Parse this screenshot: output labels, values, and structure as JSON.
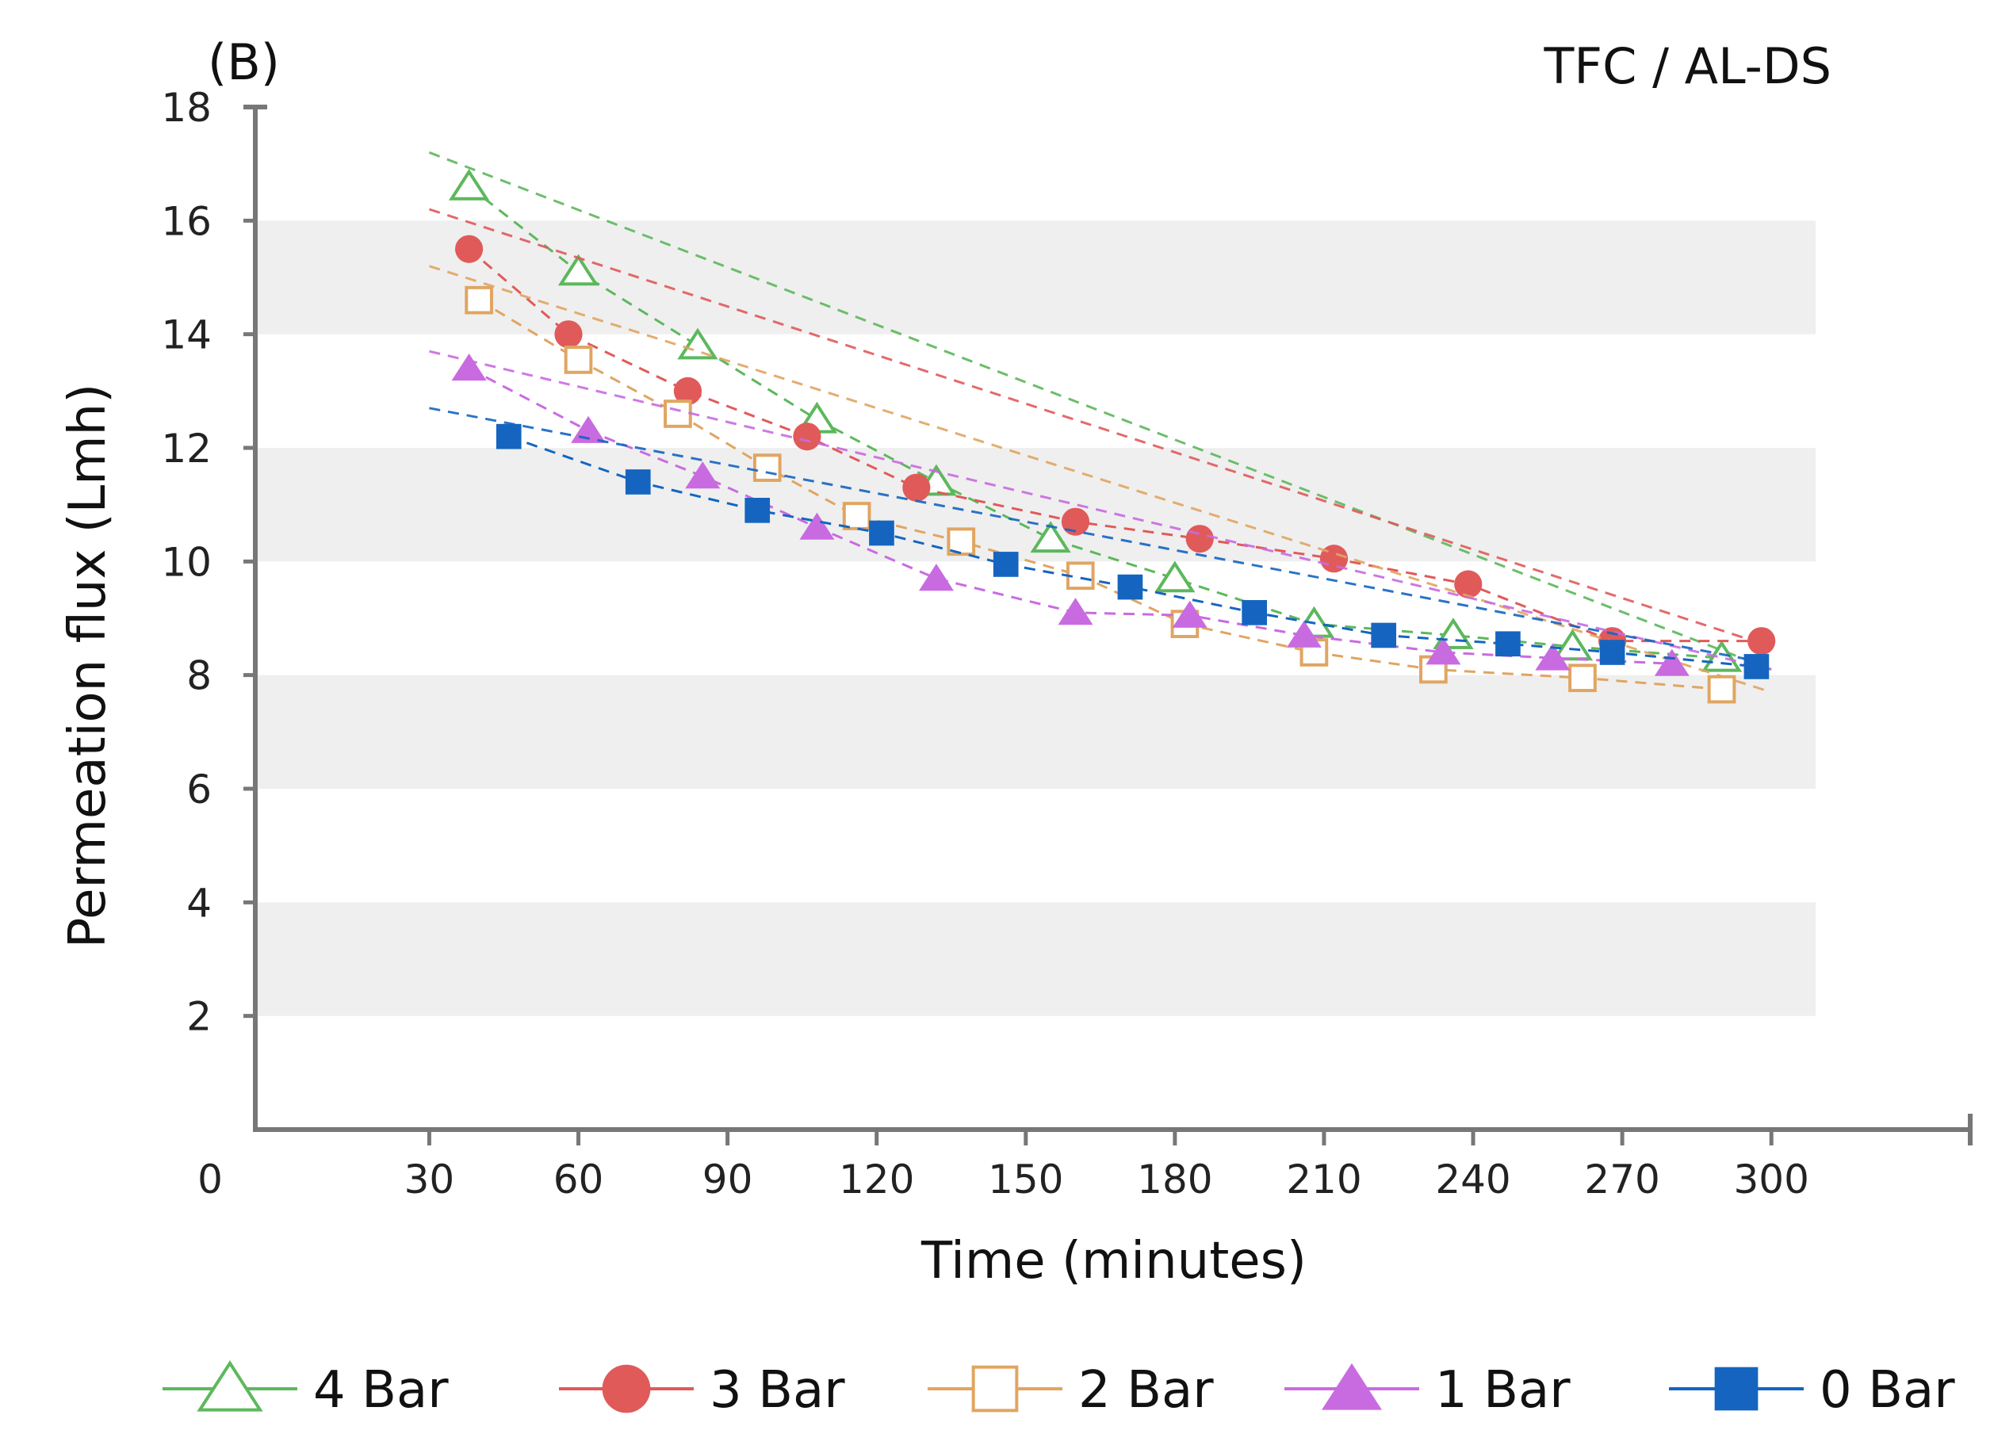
{
  "chart_data": {
    "type": "line",
    "panel_label": "(B)",
    "title": "TFC / AL-DS",
    "xlabel": "Time (minutes)",
    "ylabel": "Permeation flux (Lmh)",
    "xlim": [
      -5,
      340
    ],
    "ylim": [
      0,
      18
    ],
    "x_ticks": [
      0,
      30,
      60,
      90,
      120,
      150,
      180,
      210,
      240,
      270,
      300
    ],
    "x_tick_labels": [
      "0",
      "30",
      "60",
      "90",
      "120",
      "150",
      "180",
      "210",
      "240",
      "270",
      "300"
    ],
    "y_ticks": [
      2,
      4,
      6,
      8,
      10,
      12,
      14,
      16,
      18
    ],
    "y_tick_labels": [
      "2",
      "4",
      "6",
      "8",
      "10",
      "12",
      "14",
      "16",
      "18"
    ],
    "background_bands": [
      [
        2,
        4
      ],
      [
        6,
        8
      ],
      [
        10,
        12
      ],
      [
        14,
        16
      ]
    ],
    "legend_position": "bottom",
    "series": [
      {
        "name": "4 Bar",
        "color": "#5cb85c",
        "marker": "triangle-open",
        "x": [
          38,
          60,
          84,
          108,
          132,
          155,
          180,
          208,
          236,
          260,
          290
        ],
        "y": [
          16.6,
          15.1,
          13.8,
          12.5,
          11.4,
          10.4,
          9.7,
          8.9,
          8.7,
          8.5,
          8.3
        ],
        "trend_x": [
          30,
          300
        ],
        "trend_y": [
          17.2,
          8.1
        ]
      },
      {
        "name": "3 Bar",
        "color": "#e05a5a",
        "marker": "circle-filled",
        "x": [
          38,
          58,
          82,
          106,
          128,
          160,
          185,
          212,
          239,
          268,
          298
        ],
        "y": [
          15.5,
          14.0,
          13.0,
          12.2,
          11.3,
          10.7,
          10.4,
          10.05,
          9.6,
          8.6,
          8.6
        ],
        "trend_x": [
          30,
          300
        ],
        "trend_y": [
          16.2,
          8.5
        ]
      },
      {
        "name": "2 Bar",
        "color": "#e0a562",
        "marker": "square-open",
        "x": [
          40,
          60,
          80,
          98,
          116,
          137,
          161,
          182,
          208,
          232,
          262,
          290
        ],
        "y": [
          14.6,
          13.55,
          12.6,
          11.65,
          10.8,
          10.35,
          9.75,
          8.9,
          8.4,
          8.1,
          7.95,
          7.75
        ],
        "trend_x": [
          30,
          300
        ],
        "trend_y": [
          15.2,
          7.7
        ]
      },
      {
        "name": "1 Bar",
        "color": "#c96be0",
        "marker": "triangle-filled",
        "x": [
          38,
          62,
          85,
          108,
          132,
          160,
          183,
          206,
          234,
          256,
          280
        ],
        "y": [
          13.4,
          12.3,
          11.5,
          10.6,
          9.7,
          9.1,
          9.05,
          8.7,
          8.4,
          8.3,
          8.2
        ],
        "trend_x": [
          30,
          300
        ],
        "trend_y": [
          13.7,
          8.1
        ]
      },
      {
        "name": "0 Bar",
        "color": "#1565c0",
        "marker": "square-filled",
        "x": [
          46,
          72,
          96,
          121,
          146,
          171,
          196,
          222,
          247,
          268,
          297
        ],
        "y": [
          12.2,
          11.4,
          10.9,
          10.5,
          9.95,
          9.55,
          9.1,
          8.7,
          8.55,
          8.4,
          8.15
        ],
        "trend_x": [
          30,
          300
        ],
        "trend_y": [
          12.7,
          8.2
        ]
      }
    ]
  }
}
